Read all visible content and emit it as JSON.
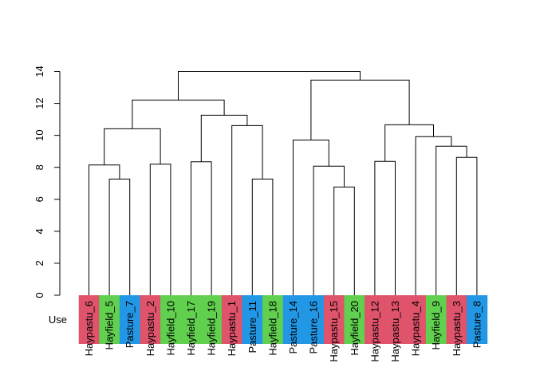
{
  "chart_data": {
    "type": "dendrogram",
    "title": "",
    "xlabel": "",
    "ylabel": "",
    "ylim": [
      0,
      14
    ],
    "yticks": [
      "0",
      "2",
      "4",
      "6",
      "8",
      "10",
      "12",
      "14"
    ],
    "grid": false,
    "colorbar_label": "Use",
    "group_colors": {
      "Haypastu": "#DF536B",
      "Hayfield": "#61D04F",
      "Pasture": "#2297E6"
    },
    "leaves": [
      {
        "label": "Haypastu_6",
        "group": "Haypastu"
      },
      {
        "label": "Hayfield_5",
        "group": "Hayfield"
      },
      {
        "label": "Pasture_7",
        "group": "Pasture"
      },
      {
        "label": "Haypastu_2",
        "group": "Haypastu"
      },
      {
        "label": "Hayfield_10",
        "group": "Hayfield"
      },
      {
        "label": "Hayfield_17",
        "group": "Hayfield"
      },
      {
        "label": "Hayfield_19",
        "group": "Hayfield"
      },
      {
        "label": "Haypastu_1",
        "group": "Haypastu"
      },
      {
        "label": "Pasture_11",
        "group": "Pasture"
      },
      {
        "label": "Hayfield_18",
        "group": "Hayfield"
      },
      {
        "label": "Pasture_14",
        "group": "Pasture"
      },
      {
        "label": "Pasture_16",
        "group": "Pasture"
      },
      {
        "label": "Haypastu_15",
        "group": "Haypastu"
      },
      {
        "label": "Hayfield_20",
        "group": "Hayfield"
      },
      {
        "label": "Haypastu_12",
        "group": "Haypastu"
      },
      {
        "label": "Haypastu_13",
        "group": "Haypastu"
      },
      {
        "label": "Haypastu_4",
        "group": "Haypastu"
      },
      {
        "label": "Hayfield_9",
        "group": "Hayfield"
      },
      {
        "label": "Haypastu_3",
        "group": "Haypastu"
      },
      {
        "label": "Pasture_8",
        "group": "Pasture"
      }
    ],
    "merges": [
      {
        "left": "L1",
        "right": "L2",
        "height": 7.27
      },
      {
        "left": "L0",
        "right": "M0",
        "height": 8.15
      },
      {
        "left": "L3",
        "right": "L4",
        "height": 8.2
      },
      {
        "left": "M1",
        "right": "M2",
        "height": 10.41
      },
      {
        "left": "L5",
        "right": "L6",
        "height": 8.35
      },
      {
        "left": "L8",
        "right": "L9",
        "height": 7.27
      },
      {
        "left": "L7",
        "right": "M5",
        "height": 10.61
      },
      {
        "left": "M4",
        "right": "M6",
        "height": 11.26
      },
      {
        "left": "M3",
        "right": "M7",
        "height": 12.21
      },
      {
        "left": "L12",
        "right": "L13",
        "height": 6.77
      },
      {
        "left": "L11",
        "right": "M9",
        "height": 8.07
      },
      {
        "left": "L10",
        "right": "M10",
        "height": 9.71
      },
      {
        "left": "L14",
        "right": "L15",
        "height": 8.37
      },
      {
        "left": "L18",
        "right": "L19",
        "height": 8.62
      },
      {
        "left": "L17",
        "right": "M13",
        "height": 9.32
      },
      {
        "left": "L16",
        "right": "M14",
        "height": 9.92
      },
      {
        "left": "M12",
        "right": "M15",
        "height": 10.66
      },
      {
        "left": "M11",
        "right": "M16",
        "height": 13.46
      },
      {
        "left": "M8",
        "right": "M17",
        "height": 14.0
      }
    ]
  }
}
